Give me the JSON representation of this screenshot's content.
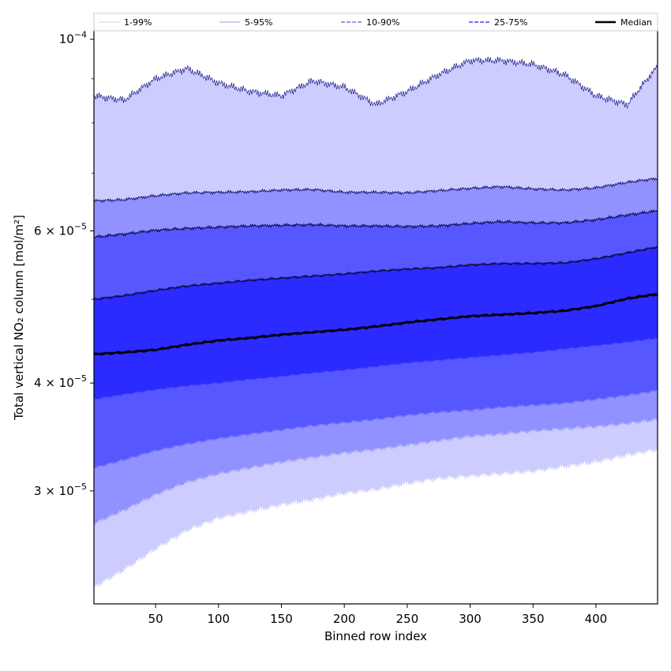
{
  "chart_data": {
    "type": "area",
    "title": "",
    "xlabel": "Binned row index",
    "ylabel": "Total vertical NO₂ column [mol/m²]",
    "yscale": "log",
    "xlim": [
      1,
      449
    ],
    "ylim": [
      2.22e-05,
      0.0001025
    ],
    "x_ticks": [
      50,
      100,
      150,
      200,
      250,
      300,
      350,
      400
    ],
    "y_major_ticks": [
      {
        "value": 0.0001,
        "mantissa": "",
        "exponent": "−4",
        "base": "10"
      },
      {
        "value": 6e-05,
        "mantissa": "6 × ",
        "exponent": "−5",
        "base": "10"
      },
      {
        "value": 4e-05,
        "mantissa": "4 × ",
        "exponent": "−5",
        "base": "10"
      },
      {
        "value": 3e-05,
        "mantissa": "3 × ",
        "exponent": "−5",
        "base": "10"
      }
    ],
    "y_minor_ticks": [
      2e-05,
      5e-05,
      7e-05,
      8e-05,
      9e-05
    ],
    "legend": {
      "placement": "top",
      "entries": [
        {
          "label": "1-99%",
          "color": "#ccccff",
          "style": "solid-thin"
        },
        {
          "label": "5-95%",
          "color": "#9999ff",
          "style": "solid-thin"
        },
        {
          "label": "10-90%",
          "color": "#7777ff",
          "style": "dashed"
        },
        {
          "label": "25-75%",
          "color": "#4444ff",
          "style": "dashed"
        },
        {
          "label": "Median",
          "color": "#000000",
          "style": "solid-thick"
        }
      ]
    },
    "band_colors": {
      "p1_99": "#ccccff",
      "p5_95": "#9191ff",
      "p10_90": "#5757ff",
      "p25_75": "#2b2bff"
    },
    "x": [
      1,
      25,
      50,
      75,
      100,
      125,
      150,
      175,
      200,
      225,
      250,
      275,
      300,
      325,
      350,
      375,
      400,
      425,
      449
    ],
    "series": [
      {
        "name": "p1",
        "values": [
          2.32e-05,
          2.43e-05,
          2.57e-05,
          2.7e-05,
          2.79e-05,
          2.84e-05,
          2.89e-05,
          2.93e-05,
          2.98e-05,
          3.01e-05,
          3.06e-05,
          3.1e-05,
          3.12e-05,
          3.14e-05,
          3.16e-05,
          3.2e-05,
          3.24e-05,
          3.3e-05,
          3.35e-05
        ]
      },
      {
        "name": "p5",
        "values": [
          2.75e-05,
          2.85e-05,
          2.97e-05,
          3.07e-05,
          3.14e-05,
          3.19e-05,
          3.24e-05,
          3.28e-05,
          3.32e-05,
          3.35e-05,
          3.39e-05,
          3.43e-05,
          3.47e-05,
          3.49e-05,
          3.52e-05,
          3.54e-05,
          3.56e-05,
          3.59e-05,
          3.63e-05
        ]
      },
      {
        "name": "p10",
        "values": [
          3.19e-05,
          3.26e-05,
          3.34e-05,
          3.4e-05,
          3.45e-05,
          3.49e-05,
          3.53e-05,
          3.57e-05,
          3.6e-05,
          3.63e-05,
          3.67e-05,
          3.7e-05,
          3.72e-05,
          3.75e-05,
          3.77e-05,
          3.79e-05,
          3.83e-05,
          3.87e-05,
          3.92e-05
        ]
      },
      {
        "name": "p25",
        "values": [
          3.83e-05,
          3.88e-05,
          3.93e-05,
          3.97e-05,
          4e-05,
          4.04e-05,
          4.07e-05,
          4.11e-05,
          4.14e-05,
          4.18e-05,
          4.22e-05,
          4.25e-05,
          4.28e-05,
          4.31e-05,
          4.34e-05,
          4.38e-05,
          4.42e-05,
          4.46e-05,
          4.51e-05
        ]
      },
      {
        "name": "median",
        "values": [
          4.32e-05,
          4.34e-05,
          4.37e-05,
          4.43e-05,
          4.48e-05,
          4.51e-05,
          4.55e-05,
          4.58e-05,
          4.61e-05,
          4.65e-05,
          4.7e-05,
          4.74e-05,
          4.78e-05,
          4.8e-05,
          4.82e-05,
          4.85e-05,
          4.91e-05,
          5.01e-05,
          5.07e-05
        ]
      },
      {
        "name": "p75",
        "values": [
          5e-05,
          5.05e-05,
          5.12e-05,
          5.18e-05,
          5.22e-05,
          5.26e-05,
          5.29e-05,
          5.32e-05,
          5.35e-05,
          5.39e-05,
          5.42e-05,
          5.44e-05,
          5.48e-05,
          5.5e-05,
          5.5e-05,
          5.51e-05,
          5.57e-05,
          5.66e-05,
          5.75e-05
        ]
      },
      {
        "name": "p90",
        "values": [
          5.9e-05,
          5.95e-05,
          6.01e-05,
          6.04e-05,
          6.06e-05,
          6.08e-05,
          6.09e-05,
          6.1e-05,
          6.08e-05,
          6.08e-05,
          6.07e-05,
          6.08e-05,
          6.12e-05,
          6.15e-05,
          6.13e-05,
          6.13e-05,
          6.18e-05,
          6.26e-05,
          6.33e-05
        ]
      },
      {
        "name": "p95",
        "values": [
          6.5e-05,
          6.52e-05,
          6.59e-05,
          6.64e-05,
          6.65e-05,
          6.66e-05,
          6.69e-05,
          6.7e-05,
          6.65e-05,
          6.65e-05,
          6.64e-05,
          6.68e-05,
          6.72e-05,
          6.75e-05,
          6.71e-05,
          6.69e-05,
          6.73e-05,
          6.83e-05,
          6.9e-05
        ]
      },
      {
        "name": "p99",
        "values": [
          8.6e-05,
          8.5e-05,
          9e-05,
          9.25e-05,
          8.9e-05,
          8.7e-05,
          8.6e-05,
          8.95e-05,
          8.8e-05,
          8.4e-05,
          8.7e-05,
          9.1e-05,
          9.45e-05,
          9.45e-05,
          9.35e-05,
          9.1e-05,
          8.6e-05,
          8.4e-05,
          9.3e-05
        ]
      }
    ]
  }
}
